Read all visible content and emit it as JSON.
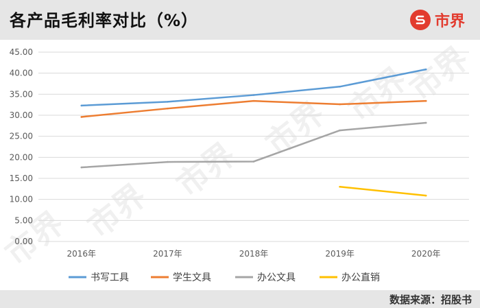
{
  "header": {
    "title": "各产品毛利率对比（%）",
    "brand": "市界",
    "brand_color": "#e23b2e"
  },
  "footer": {
    "source": "数据来源：招股书"
  },
  "watermark": {
    "text": "市界"
  },
  "chart_data": {
    "type": "line",
    "title": "各产品毛利率对比（%）",
    "xlabel": "",
    "ylabel": "",
    "ylim": [
      0,
      45
    ],
    "yticks": [
      "0.00",
      "5.00",
      "10.00",
      "15.00",
      "20.00",
      "25.00",
      "30.00",
      "35.00",
      "40.00",
      "45.00"
    ],
    "categories": [
      "2016年",
      "2017年",
      "2018年",
      "2019年",
      "2020年"
    ],
    "grid": true,
    "legend_position": "bottom",
    "series": [
      {
        "name": "书写工具",
        "color": "#5b9bd5",
        "values": [
          32.3,
          33.2,
          34.8,
          36.8,
          40.9
        ]
      },
      {
        "name": "学生文具",
        "color": "#ed7d31",
        "values": [
          29.6,
          31.6,
          33.4,
          32.6,
          33.4
        ]
      },
      {
        "name": "办公文具",
        "color": "#a5a5a5",
        "values": [
          17.6,
          18.9,
          19.0,
          26.4,
          28.2
        ]
      },
      {
        "name": "办公直销",
        "color": "#ffc000",
        "values": [
          null,
          null,
          null,
          13.0,
          10.9
        ]
      }
    ]
  }
}
